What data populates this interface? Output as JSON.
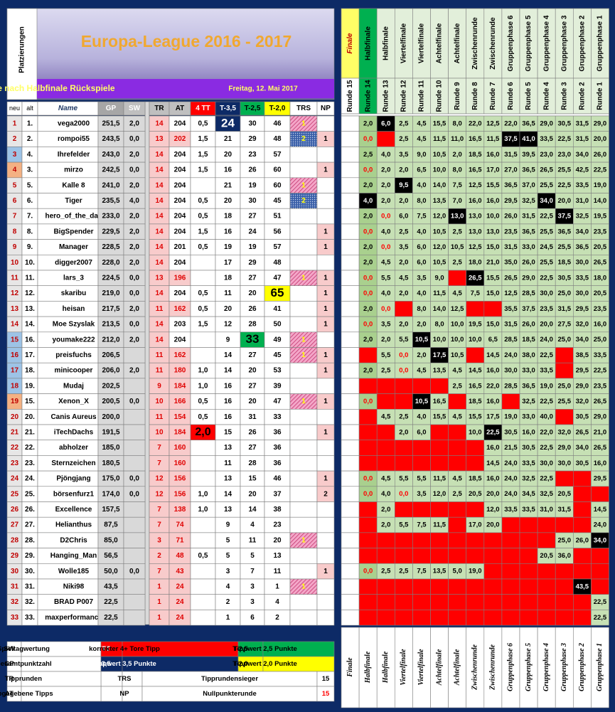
{
  "header": {
    "side": "Platzierungen",
    "title": "Europa-League 2016 - 2017",
    "subtitle": "Tabelle nach Halbfinale Rückspiele",
    "date": "Freitag, 12. Mai 2017"
  },
  "table": {
    "columns": [
      "neu",
      "alt",
      "Name",
      "GP",
      "SW",
      "TR",
      "AT",
      "4 TT",
      "T-3,5",
      "T-2,5",
      "T-2,0",
      "TRS",
      "NP"
    ],
    "rows": [
      [
        1,
        "1.",
        "vega2000",
        "251,5",
        "2,0",
        14,
        204,
        "0,5",
        24,
        30,
        46,
        1,
        null
      ],
      [
        2,
        "2.",
        "rompoi55",
        "243,5",
        "0,0",
        13,
        202,
        "1,5",
        21,
        29,
        48,
        2,
        1
      ],
      [
        3,
        "4.",
        "Ihrefelder",
        "243,0",
        "2,0",
        14,
        204,
        "1,5",
        20,
        23,
        57,
        null,
        null
      ],
      [
        4,
        "3.",
        "mirzo",
        "242,5",
        "0,0",
        14,
        204,
        "1,5",
        16,
        26,
        60,
        null,
        1
      ],
      [
        5,
        "5.",
        "Kalle 8",
        "241,0",
        "2,0",
        14,
        204,
        null,
        21,
        19,
        60,
        1,
        null
      ],
      [
        6,
        "6.",
        "Tiger",
        "235,5",
        "4,0",
        14,
        204,
        "0,5",
        20,
        30,
        45,
        2,
        null
      ],
      [
        7,
        "7.",
        "hero_of_the_day",
        "233,0",
        "2,0",
        14,
        204,
        "0,5",
        18,
        27,
        51,
        null,
        null
      ],
      [
        8,
        "8.",
        "BigSpender",
        "229,5",
        "2,0",
        14,
        204,
        "1,5",
        16,
        24,
        56,
        null,
        1
      ],
      [
        9,
        "9.",
        "Manager",
        "228,5",
        "2,0",
        14,
        201,
        "0,5",
        19,
        19,
        57,
        null,
        1
      ],
      [
        10,
        "10.",
        "digger2007",
        "228,0",
        "2,0",
        14,
        204,
        null,
        17,
        29,
        48,
        null,
        null
      ],
      [
        11,
        "11.",
        "lars_3",
        "224,5",
        "0,0",
        13,
        196,
        null,
        18,
        27,
        47,
        1,
        1
      ],
      [
        12,
        "12.",
        "skaribu",
        "219,0",
        "0,0",
        14,
        204,
        "0,5",
        11,
        20,
        65,
        null,
        1
      ],
      [
        13,
        "13.",
        "heisan",
        "217,5",
        "2,0",
        11,
        162,
        "0,5",
        20,
        26,
        41,
        null,
        1
      ],
      [
        14,
        "14.",
        "Moe Szyslak",
        "213,5",
        "0,0",
        14,
        203,
        "1,5",
        12,
        28,
        50,
        null,
        1
      ],
      [
        15,
        "16.",
        "youmake222",
        "212,0",
        "2,0",
        14,
        204,
        null,
        9,
        33,
        49,
        1,
        null
      ],
      [
        16,
        "17.",
        "preisfuchs",
        "206,5",
        null,
        11,
        162,
        null,
        14,
        27,
        45,
        1,
        1
      ],
      [
        17,
        "18.",
        "minicooper",
        "206,0",
        "2,0",
        11,
        180,
        "1,0",
        14,
        20,
        53,
        null,
        1
      ],
      [
        18,
        "19.",
        "Mudaj",
        "202,5",
        null,
        9,
        184,
        "1,0",
        16,
        27,
        39,
        null,
        null
      ],
      [
        19,
        "15.",
        "Xenon_X",
        "200,5",
        "0,0",
        10,
        166,
        "0,5",
        16,
        20,
        47,
        1,
        1
      ],
      [
        20,
        "20.",
        "Canis Aureus",
        "200,0",
        null,
        11,
        154,
        "0,5",
        16,
        31,
        33,
        null,
        null
      ],
      [
        21,
        "21.",
        "iTechDachs",
        "191,5",
        null,
        10,
        184,
        "2,0",
        15,
        26,
        36,
        null,
        1
      ],
      [
        22,
        "22.",
        "abholzer",
        "185,0",
        null,
        7,
        160,
        null,
        13,
        27,
        36,
        null,
        null
      ],
      [
        23,
        "23.",
        "Sternzeichen",
        "180,5",
        null,
        7,
        160,
        null,
        11,
        28,
        36,
        null,
        null
      ],
      [
        24,
        "24.",
        "Pjöngjang",
        "175,0",
        "0,0",
        12,
        156,
        null,
        13,
        15,
        46,
        null,
        1
      ],
      [
        25,
        "25.",
        "börsenfurz1",
        "174,0",
        "0,0",
        12,
        156,
        "1,0",
        14,
        20,
        37,
        null,
        2
      ],
      [
        26,
        "26.",
        "Excellence",
        "157,5",
        null,
        7,
        138,
        "1,0",
        13,
        14,
        38,
        null,
        null
      ],
      [
        27,
        "27.",
        "Helianthus",
        "87,5",
        null,
        7,
        74,
        null,
        9,
        4,
        23,
        null,
        null
      ],
      [
        28,
        "28.",
        "D2Chris",
        "85,0",
        null,
        3,
        71,
        null,
        5,
        11,
        20,
        1,
        null
      ],
      [
        29,
        "29.",
        "Hanging_Man",
        "56,5",
        null,
        2,
        48,
        "0,5",
        5,
        5,
        13,
        null,
        null
      ],
      [
        30,
        "30.",
        "Wolle185",
        "50,0",
        "0,0",
        7,
        43,
        null,
        3,
        7,
        11,
        null,
        1
      ],
      [
        31,
        "31.",
        "Niki98",
        "43,5",
        null,
        1,
        24,
        null,
        4,
        3,
        1,
        1,
        null
      ],
      [
        32,
        "32.",
        "BRAD P007",
        "22,5",
        null,
        1,
        24,
        null,
        2,
        3,
        4,
        null,
        null
      ],
      [
        33,
        "33.",
        "maxperformance",
        "22,5",
        null,
        1,
        24,
        null,
        1,
        6,
        2,
        null,
        null
      ]
    ]
  },
  "rounds": {
    "stages": [
      "Finale",
      "Halbfinale",
      "Halbfinale",
      "Viertelfinale",
      "Viertelfinale",
      "Achtelfinale",
      "Achtelfinale",
      "Zwischenrunde",
      "Zwischenrunde",
      "Gruppenphase 6",
      "Gruppenphase 5",
      "Gruppenphase 4",
      "Gruppenphase 3",
      "Gruppenphase 2",
      "Gruppenphase 1"
    ],
    "numbers": [
      "Runde 15",
      "Runde 14",
      "Runde 13",
      "Runde 12",
      "Runde 11",
      "Runde 10",
      "Runde 9",
      "Runde 8",
      "Runde 7",
      "Runde 6",
      "Runde 5",
      "Runde 4",
      "Runde 3",
      "Runde 2",
      "Runde 1"
    ],
    "rows": [
      [
        null,
        "2,0",
        {
          "value": "6,0",
          "best": true
        },
        "2,5",
        "4,5",
        "15,5",
        "8,0",
        "22,0",
        "12,5",
        "22,0",
        "36,5",
        "29,0",
        "30,5",
        "31,5",
        "29,0"
      ],
      [
        null,
        "0,0",
        null,
        "2,5",
        "4,5",
        "11,5",
        "11,0",
        "16,5",
        "11,5",
        {
          "value": "37,5",
          "best": true
        },
        {
          "value": "41,0",
          "best": true
        },
        "33,5",
        "22,5",
        "31,5",
        "20,0"
      ],
      [
        null,
        "2,5",
        "4,0",
        "3,5",
        "9,0",
        "10,5",
        "2,0",
        "18,5",
        "16,0",
        "31,5",
        "39,5",
        "23,0",
        "23,0",
        "34,0",
        "26,0"
      ],
      [
        null,
        "0,0",
        "2,0",
        "2,0",
        "6,5",
        "10,0",
        "8,0",
        "16,5",
        "17,0",
        "27,0",
        "36,5",
        "26,5",
        "25,5",
        "42,5",
        "22,5"
      ],
      [
        null,
        "2,0",
        "2,0",
        {
          "value": "9,5",
          "best": true
        },
        "4,0",
        "14,0",
        "7,5",
        "12,5",
        "15,5",
        "36,5",
        "37,0",
        "25,5",
        "22,5",
        "33,5",
        "19,0"
      ],
      [
        null,
        {
          "value": "4,0",
          "best": true
        },
        "2,0",
        "2,0",
        "8,0",
        "13,5",
        "7,0",
        "16,0",
        "16,0",
        "29,5",
        "32,5",
        {
          "value": "34,0",
          "best": true
        },
        "20,0",
        "31,0",
        "14,0"
      ],
      [
        null,
        "2,0",
        "0,0",
        "6,0",
        "7,5",
        "12,0",
        {
          "value": "13,0",
          "best": true
        },
        "13,0",
        "10,0",
        "26,0",
        "31,5",
        "22,5",
        {
          "value": "37,5",
          "best": true
        },
        "32,5",
        "19,5"
      ],
      [
        null,
        "0,0",
        "4,0",
        "2,5",
        "4,0",
        "10,5",
        "2,5",
        "13,0",
        "13,0",
        "23,5",
        "36,5",
        "25,5",
        "36,5",
        "34,0",
        "23,5"
      ],
      [
        null,
        "2,0",
        "0,0",
        "3,5",
        "6,0",
        "12,0",
        "10,5",
        "12,5",
        "15,0",
        "31,5",
        "33,0",
        "24,5",
        "25,5",
        "36,5",
        "20,5"
      ],
      [
        null,
        "2,0",
        "4,5",
        "2,0",
        "6,0",
        "10,5",
        "2,5",
        "18,0",
        "21,0",
        "35,0",
        "26,0",
        "25,5",
        "18,5",
        "30,0",
        "26,5"
      ],
      [
        null,
        "0,0",
        "5,5",
        "4,5",
        "3,5",
        "9,0",
        null,
        {
          "value": "26,5",
          "best": true
        },
        "15,5",
        "26,5",
        "29,0",
        "22,5",
        "30,5",
        "33,5",
        "18,0"
      ],
      [
        null,
        "0,0",
        "4,0",
        "2,0",
        "4,0",
        "11,5",
        "4,5",
        "7,5",
        "15,0",
        "12,5",
        "28,5",
        "30,0",
        "25,0",
        "30,0",
        "20,5"
      ],
      [
        null,
        "2,0",
        "0,0",
        null,
        "8,0",
        "14,0",
        "12,5",
        null,
        null,
        "35,5",
        "37,5",
        "23,5",
        "31,5",
        "29,5",
        "23,5"
      ],
      [
        null,
        "0,0",
        "3,5",
        "2,0",
        "2,0",
        "8,0",
        "10,0",
        "19,5",
        "15,0",
        "31,5",
        "26,0",
        "20,0",
        "27,5",
        "32,0",
        "16,0"
      ],
      [
        null,
        "2,0",
        "2,0",
        "5,5",
        {
          "value": "10,5",
          "best": true
        },
        "10,0",
        "10,0",
        "10,0",
        "6,5",
        "28,5",
        "18,5",
        "24,0",
        "25,0",
        "34,0",
        "25,0"
      ],
      [
        null,
        null,
        "5,5",
        "0,0",
        "2,0",
        {
          "value": "17,5",
          "best": true
        },
        "10,5",
        null,
        "14,5",
        "24,0",
        "38,0",
        "22,5",
        null,
        "38,5",
        "33,5"
      ],
      [
        null,
        "2,0",
        "2,5",
        "0,0",
        "4,5",
        "13,5",
        "4,5",
        "14,5",
        "16,0",
        "30,0",
        "33,0",
        "33,5",
        null,
        "29,5",
        "22,5"
      ],
      [
        null,
        null,
        null,
        null,
        null,
        null,
        "2,5",
        "16,5",
        "22,0",
        "28,5",
        "36,5",
        "19,0",
        "25,0",
        "29,0",
        "23,5"
      ],
      [
        null,
        "0,0",
        null,
        null,
        {
          "value": "10,5",
          "best": true
        },
        "16,5",
        null,
        "18,5",
        "16,0",
        null,
        "32,5",
        "22,5",
        "25,5",
        "32,0",
        "26,5"
      ],
      [
        null,
        null,
        "4,5",
        "2,5",
        "4,0",
        "15,5",
        "4,5",
        "15,5",
        "17,5",
        "19,0",
        "33,0",
        "40,0",
        null,
        "30,5",
        "29,0"
      ],
      [
        null,
        null,
        null,
        "2,0",
        "6,0",
        null,
        null,
        "10,0",
        {
          "value": "22,5",
          "best": true
        },
        "30,5",
        "16,0",
        "22,0",
        "32,0",
        "26,5",
        "21,0"
      ],
      [
        null,
        null,
        null,
        null,
        null,
        null,
        null,
        null,
        "16,0",
        "21,5",
        "30,5",
        "22,5",
        "29,0",
        "34,0",
        "26,5"
      ],
      [
        null,
        null,
        null,
        null,
        null,
        null,
        null,
        null,
        "14,5",
        "24,0",
        "33,5",
        "30,0",
        "30,0",
        "30,5",
        "16,0"
      ],
      [
        null,
        "0,0",
        "4,5",
        "5,5",
        "5,5",
        "11,5",
        "4,5",
        "18,5",
        "16,0",
        "24,0",
        "32,5",
        "22,5",
        null,
        null,
        "29,5"
      ],
      [
        null,
        "0,0",
        "4,0",
        "0,0",
        "3,5",
        "12,0",
        "2,5",
        "20,5",
        "20,0",
        "24,0",
        "34,5",
        "32,5",
        "20,5",
        null,
        null
      ],
      [
        null,
        null,
        "2,0",
        null,
        null,
        null,
        null,
        null,
        "12,0",
        "33,5",
        "33,5",
        "31,0",
        "31,5",
        null,
        "14,5"
      ],
      [
        null,
        null,
        "2,0",
        "5,5",
        "7,5",
        "11,5",
        null,
        "17,0",
        "20,0",
        null,
        null,
        null,
        null,
        null,
        "24,0"
      ],
      [
        null,
        null,
        null,
        null,
        null,
        null,
        null,
        null,
        null,
        null,
        null,
        null,
        "25,0",
        "26,0",
        {
          "value": "34,0",
          "best": true
        }
      ],
      [
        null,
        null,
        null,
        null,
        null,
        null,
        null,
        null,
        null,
        null,
        null,
        "20,5",
        "36,0",
        null,
        null
      ],
      [
        null,
        "0,0",
        "2,5",
        "2,5",
        "7,5",
        "13,5",
        "5,0",
        "19,0",
        null,
        null,
        null,
        null,
        null,
        null,
        null
      ],
      [
        null,
        null,
        null,
        null,
        null,
        null,
        null,
        null,
        null,
        null,
        null,
        null,
        null,
        {
          "value": "43,5",
          "best": true
        },
        null
      ],
      [
        null,
        null,
        null,
        null,
        null,
        null,
        null,
        null,
        null,
        null,
        null,
        null,
        null,
        null,
        "22,5"
      ],
      [
        null,
        null,
        null,
        null,
        null,
        null,
        null,
        null,
        null,
        null,
        null,
        null,
        null,
        null,
        "22,5"
      ]
    ]
  },
  "legend": {
    "rows": [
      [
        "SW",
        "Spieltagwertung",
        "4 TT",
        "korrekter 4+ Tore Tipp",
        "T-2,5",
        "Tippwert 2,5 Punkte"
      ],
      [
        "GP",
        "Gesamtpunktzahl",
        "T-3,5",
        "Tippwert 3,5 Punkte",
        "T-2,0",
        "Tippwert 2,0 Punkte"
      ],
      [
        "TR",
        "Tipprunden",
        "TRS",
        "Tipprundensieger",
        15
      ],
      [
        "AT",
        "abgegebene Tipps",
        "NP",
        "Nullpunkterunde",
        15
      ]
    ]
  }
}
